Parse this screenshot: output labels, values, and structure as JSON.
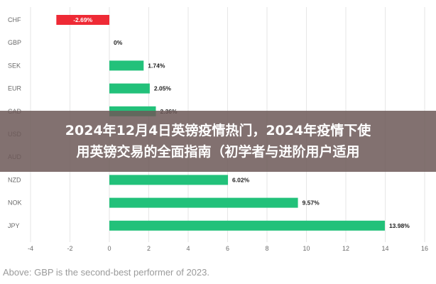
{
  "chart_data": {
    "type": "bar",
    "orientation": "horizontal",
    "categories": [
      "CHF",
      "GBP",
      "SEK",
      "EUR",
      "CAD",
      "USD",
      "AUD",
      "NZD",
      "NOK",
      "JPY"
    ],
    "values": [
      -2.69,
      0,
      1.74,
      2.05,
      2.36,
      null,
      null,
      6.02,
      9.57,
      13.98
    ],
    "value_labels": [
      "-2.69%",
      "0%",
      "1.74%",
      "2.05%",
      "2.36%",
      "",
      "",
      "6.02%",
      "9.57%",
      "13.98%"
    ],
    "xlim": [
      -4,
      16
    ],
    "xticks": [
      -4,
      -2,
      0,
      2,
      4,
      6,
      8,
      10,
      12,
      14,
      16
    ],
    "grid": true,
    "colors": {
      "positive": "#22c17a",
      "negative": "#ee2a35",
      "grid": "#e6e6e6",
      "axis_text": "#6b6b6b"
    }
  },
  "overlay": {
    "line1": "2024年12月4日英镑疫情热门，2024年疫情下使",
    "line2": "用英镑交易的全面指南（初学者与进阶用户适用"
  },
  "caption": "Above: GBP is the second-best performer of 2023."
}
